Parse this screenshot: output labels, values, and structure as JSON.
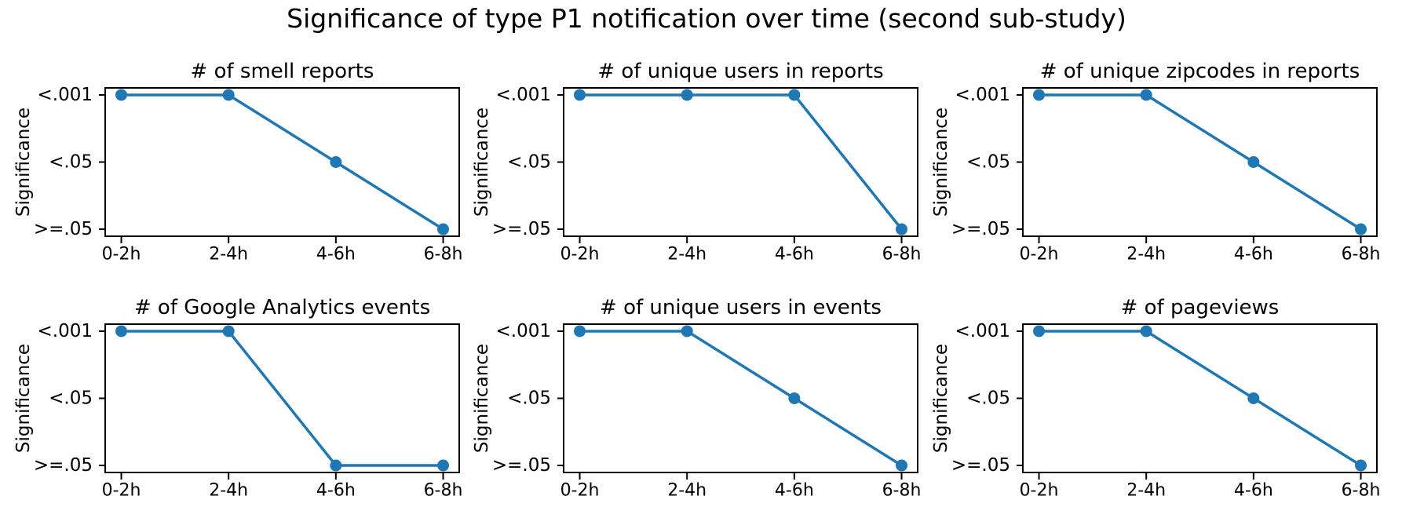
{
  "figure": {
    "suptitle": "Significance of type P1 notification over time (second sub-study)",
    "background_color": "#ffffff",
    "text_color": "#000000",
    "line_color": "#1f77b4",
    "spine_color": "#000000"
  },
  "chart_data": {
    "type": "line",
    "title": "Significance of type P1 notification over time (second sub-study)",
    "grid": false,
    "legend": false,
    "marker": "circle",
    "categories": [
      "0-2h",
      "2-4h",
      "4-6h",
      "6-8h"
    ],
    "xlabel": "",
    "ylabel": "Significance",
    "ytick_labels_top_to_bottom": [
      "<.001",
      "<.05",
      ">=.05"
    ],
    "ytick_values_top_to_bottom": [
      2,
      1,
      0
    ],
    "ylim": [
      -0.105,
      2.105
    ],
    "xlim": [
      -0.15,
      3.15
    ],
    "layout": "2 rows x 3 columns",
    "subplots": [
      {
        "title": "# of smell reports",
        "values": [
          2,
          2,
          1,
          0
        ],
        "significance_labels": [
          "<.001",
          "<.001",
          "<.05",
          ">=.05"
        ]
      },
      {
        "title": "# of unique users in reports",
        "values": [
          2,
          2,
          2,
          0
        ],
        "significance_labels": [
          "<.001",
          "<.001",
          "<.001",
          ">=.05"
        ]
      },
      {
        "title": "# of unique zipcodes in reports",
        "values": [
          2,
          2,
          1,
          0
        ],
        "significance_labels": [
          "<.001",
          "<.001",
          "<.05",
          ">=.05"
        ]
      },
      {
        "title": "# of Google Analytics events",
        "values": [
          2,
          2,
          0,
          0
        ],
        "significance_labels": [
          "<.001",
          "<.001",
          ">=.05",
          ">=.05"
        ]
      },
      {
        "title": "# of unique users in events",
        "values": [
          2,
          2,
          1,
          0
        ],
        "significance_labels": [
          "<.001",
          "<.001",
          "<.05",
          ">=.05"
        ]
      },
      {
        "title": "# of pageviews",
        "values": [
          2,
          2,
          1,
          0
        ],
        "significance_labels": [
          "<.001",
          "<.001",
          "<.05",
          ">=.05"
        ]
      }
    ]
  }
}
